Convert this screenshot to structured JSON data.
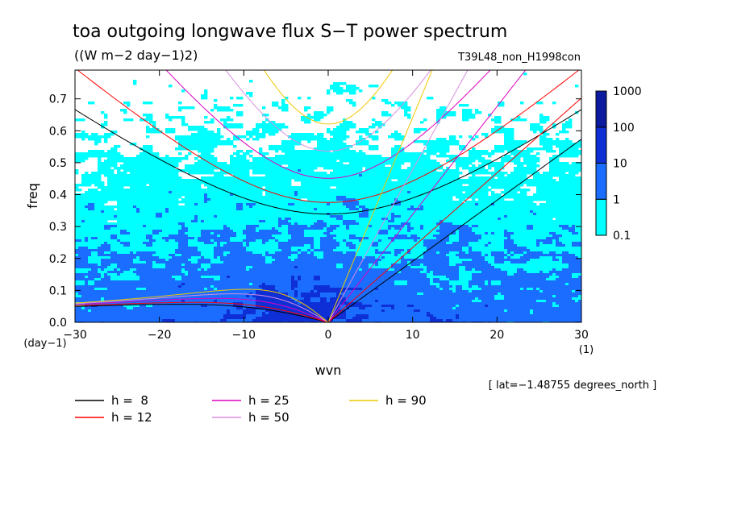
{
  "chart_data": {
    "type": "heatmap",
    "title": "toa outgoing longwave flux S−T power spectrum",
    "units": "((W m−2 day−1)2)",
    "run_id": "T39L48_non_H1998con",
    "xlabel": "wvn",
    "ylabel": "freq",
    "x_unit": "(1)",
    "y_unit": "(day−1)",
    "xlim": [
      -30,
      30
    ],
    "ylim": [
      0,
      0.79
    ],
    "x_ticks": [
      -30,
      -20,
      -10,
      0,
      10,
      20,
      30
    ],
    "x_tick_labels": [
      "−30",
      "−20",
      "−10",
      "0",
      "10",
      "20",
      "30"
    ],
    "y_ticks": [
      0,
      0.1,
      0.2,
      0.3,
      0.4,
      0.5,
      0.6,
      0.7
    ],
    "y_tick_labels": [
      "0.0",
      "0.1",
      "0.2",
      "0.3",
      "0.4",
      "0.5",
      "0.6",
      "0.7"
    ],
    "colorbar": {
      "levels": [
        "0.1",
        "1",
        "10",
        "100",
        "1000"
      ],
      "colors": [
        "#00ffff",
        "#1a6dff",
        "#0f2fd6",
        "#0c1aa0",
        "#4a16b0"
      ]
    },
    "background_color": "#ffffff",
    "dispersion_curves": [
      {
        "label": "h =  8",
        "h": 8,
        "color": "#000000"
      },
      {
        "label": "h = 12",
        "h": 12,
        "color": "#ff0000"
      },
      {
        "label": "h = 25",
        "h": 25,
        "color": "#e000c0"
      },
      {
        "label": "h = 50",
        "h": 50,
        "color": "#d88ee0"
      },
      {
        "label": "h = 90",
        "h": 90,
        "color": "#f0c800"
      }
    ],
    "annotation": "[ lat=−1.48755 degrees_north ]"
  }
}
